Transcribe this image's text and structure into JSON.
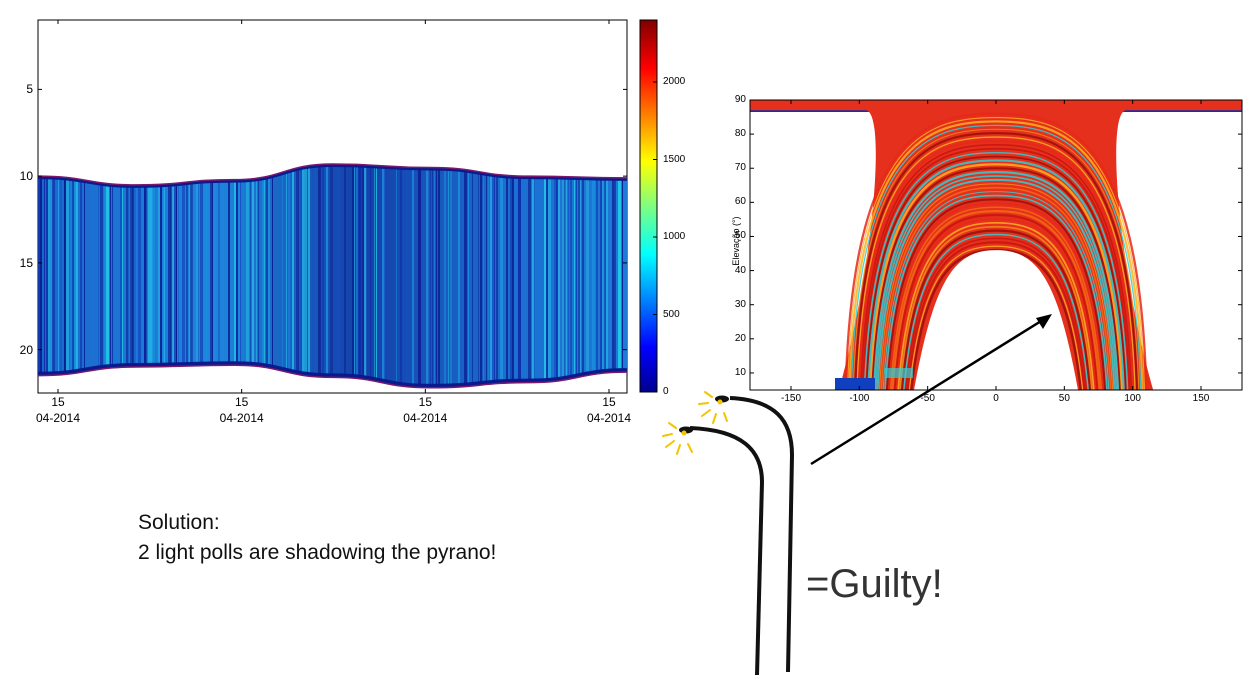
{
  "chart_data": [
    {
      "type": "heatmap",
      "title": "",
      "xlabel": "",
      "ylabel": "",
      "x_ticks": [
        {
          "day": "15",
          "month": "04-2014"
        },
        {
          "day": "15",
          "month": "04-2014"
        },
        {
          "day": "15",
          "month": "04-2014"
        },
        {
          "day": "15",
          "month": "04-2014"
        }
      ],
      "y_ticks": [
        "5",
        "10",
        "15",
        "20"
      ],
      "ylim": [
        22.5,
        1
      ],
      "colorbar": {
        "ticks": [
          "0",
          "500",
          "1000",
          "1500",
          "2000"
        ],
        "range": [
          0,
          2400
        ],
        "colormap": "jet"
      },
      "band": {
        "upper_boundary_hours": [
          10,
          10.5,
          10.2,
          9.3,
          9.5,
          10,
          10.1
        ],
        "lower_boundary_hours": [
          21.5,
          21.0,
          20.9,
          21.6,
          22.2,
          21.9,
          21.3
        ],
        "dominant_values": "200-1100"
      }
    },
    {
      "type": "heatmap",
      "title": "",
      "xlabel": "",
      "ylabel": "Elevação (°)",
      "x_ticks": [
        "-150",
        "-100",
        "-50",
        "0",
        "50",
        "100",
        "150"
      ],
      "y_ticks": [
        "10",
        "20",
        "30",
        "40",
        "50",
        "60",
        "70",
        "80",
        "90"
      ],
      "xlim": [
        -180,
        180
      ],
      "ylim": [
        5,
        90
      ],
      "colormap": "jet",
      "dominant_values": "high (red)"
    }
  ],
  "annotation": {
    "solution_title": "Solution:",
    "solution_text": "2 light polls are shadowing the pyrano!",
    "verdict": "=Guilty!"
  },
  "colors": {
    "axis": "#000000",
    "band_dark": "#0a1a8c",
    "band_mid": "#1c6fd6",
    "band_light": "#23c8e8",
    "heat_red": "#e8281a",
    "heat_orange": "#f46a12",
    "verdict_text": "#333333",
    "lamp_glow": "#f5c400"
  },
  "icons": [
    "street-light-icon",
    "street-light-icon",
    "arrow-icon"
  ]
}
